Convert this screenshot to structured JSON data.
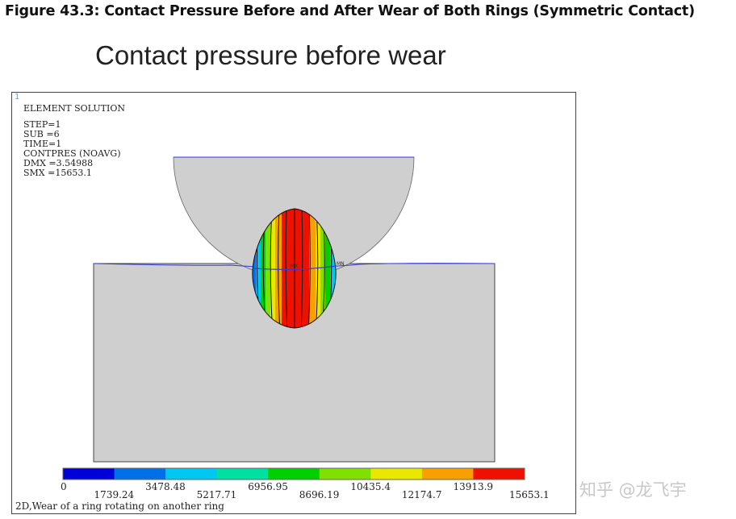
{
  "figure_caption": "Figure 43.3: Contact Pressure Before and After Wear of Both Rings (Symmetric Contact)",
  "plot_title": "Contact pressure before wear",
  "viewport": {
    "window_number": "1",
    "info_lines": [
      "ELEMENT SOLUTION",
      "STEP=1",
      "SUB =6",
      "TIME=1",
      "CONTPRES (NOAVG)",
      "DMX =3.54988",
      "SMX =15653.1"
    ],
    "mx_label": "MX",
    "mn_label": "MN",
    "footer": "2D,Wear of a ring rotating on another ring"
  },
  "legend": {
    "colors": [
      "#0000d8",
      "#0070e8",
      "#00c8f0",
      "#00e0a0",
      "#00d000",
      "#80e000",
      "#e8e800",
      "#f8a000",
      "#f01000"
    ],
    "values": [
      "0",
      "1739.24",
      "3478.48",
      "5217.71",
      "6956.95",
      "8696.19",
      "10435.4",
      "12174.7",
      "13913.9",
      "15653.1"
    ]
  },
  "colors": {
    "body_fill": "#cfcfcf",
    "mesh_edge": "#3838d8"
  },
  "watermark": "知乎 @龙飞宇"
}
